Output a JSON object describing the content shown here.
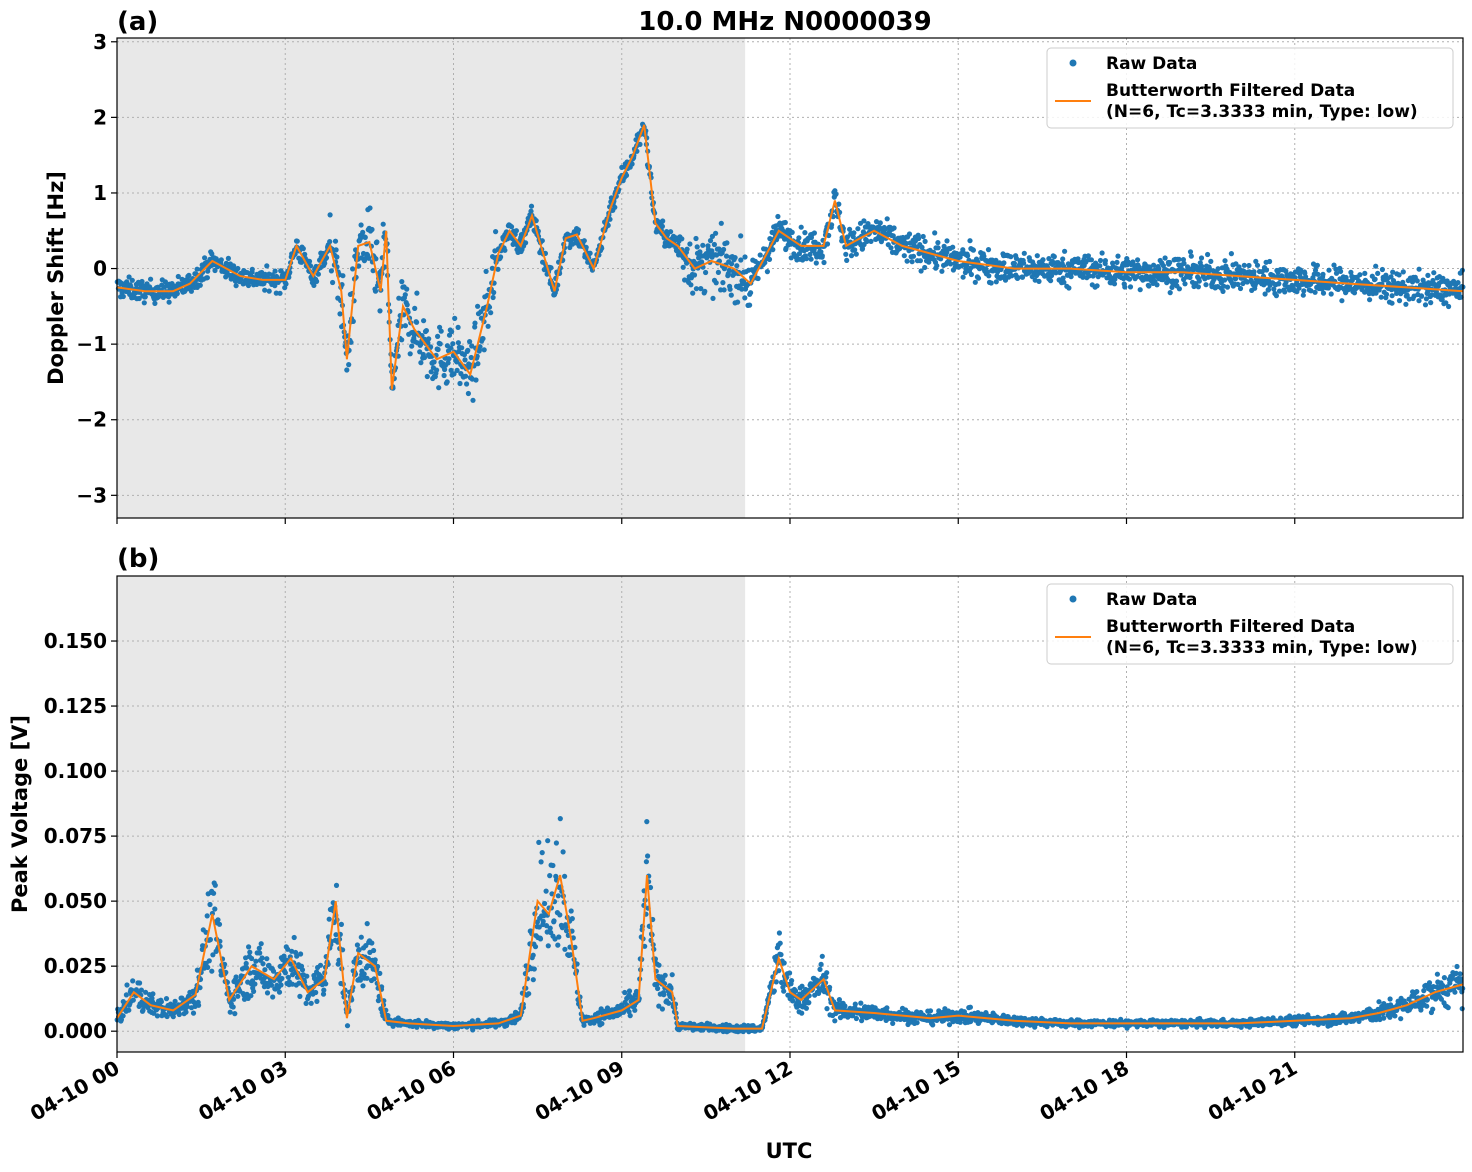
{
  "figure": {
    "title": "10.0 MHz N0000039",
    "xlabel": "UTC"
  },
  "colors": {
    "raw": "#1f77b4",
    "filtered": "#ff7f0e",
    "shade": "#e8e8e8",
    "grid": "#b0b0b0"
  },
  "legend": {
    "raw_label": "Raw Data",
    "filtered_label_line1": "Butterworth Filtered Data",
    "filtered_label_line2": "(N=6, Tc=3.3333 min, Type: low)"
  },
  "chart_data": [
    {
      "panel": "(a)",
      "type": "scatter",
      "ylabel": "Doppler Shift [Hz]",
      "xlim": [
        0,
        24
      ],
      "ylim": [
        -3.3,
        3.05
      ],
      "yticks": [
        -3,
        -2,
        -1,
        0,
        1,
        2,
        3
      ],
      "ytick_labels": [
        "−3",
        "−2",
        "−1",
        "0",
        "1",
        "2",
        "3"
      ],
      "xticks": [
        0,
        3,
        6,
        9,
        12,
        15,
        18,
        21
      ],
      "xtick_labels": [
        "04-10 00",
        "04-10 03",
        "04-10 06",
        "04-10 09",
        "04-10 12",
        "04-10 15",
        "04-10 18",
        "04-10 21"
      ],
      "grid": true,
      "legend_position": "top-right",
      "shaded_interval_hours": [
        0,
        11.2
      ],
      "filtered_series": {
        "x_hours": [
          0,
          0.5,
          1,
          1.3,
          1.7,
          2.2,
          2.6,
          3,
          3.2,
          3.5,
          3.8,
          4.0,
          4.1,
          4.3,
          4.5,
          4.7,
          4.8,
          4.9,
          5.1,
          5.3,
          5.5,
          5.7,
          6.0,
          6.3,
          6.6,
          6.8,
          7.0,
          7.2,
          7.4,
          7.6,
          7.8,
          8.0,
          8.2,
          8.5,
          8.8,
          9.0,
          9.2,
          9.4,
          9.6,
          9.8,
          10.0,
          10.3,
          10.6,
          11.0,
          11.3,
          11.8,
          12.2,
          12.6,
          12.8,
          13.0,
          13.5,
          14.0,
          15.0,
          16.0,
          17.0,
          18.0,
          19.0,
          20.0,
          21.0,
          22.0,
          23.0,
          24.0
        ],
        "doppler_hz": [
          -0.25,
          -0.3,
          -0.3,
          -0.2,
          0.1,
          -0.1,
          -0.15,
          -0.15,
          0.3,
          -0.1,
          0.3,
          -0.3,
          -1.2,
          0.3,
          0.35,
          -0.3,
          0.5,
          -1.6,
          -0.5,
          -0.8,
          -1.0,
          -1.2,
          -1.1,
          -1.4,
          -0.5,
          0.2,
          0.5,
          0.3,
          0.7,
          0.2,
          -0.3,
          0.4,
          0.45,
          0.0,
          0.8,
          1.2,
          1.5,
          1.9,
          0.6,
          0.4,
          0.3,
          0.0,
          0.1,
          0.0,
          -0.2,
          0.5,
          0.3,
          0.3,
          0.9,
          0.3,
          0.5,
          0.3,
          0.1,
          0.0,
          0.0,
          -0.05,
          -0.05,
          -0.1,
          -0.15,
          -0.2,
          -0.25,
          -0.3
        ]
      }
    },
    {
      "panel": "(b)",
      "type": "scatter",
      "ylabel": "Peak Voltage [V]",
      "xlim": [
        0,
        24
      ],
      "ylim": [
        -0.008,
        0.175
      ],
      "yticks": [
        0,
        0.025,
        0.05,
        0.075,
        0.1,
        0.125,
        0.15
      ],
      "ytick_labels": [
        "0.000",
        "0.025",
        "0.050",
        "0.075",
        "0.100",
        "0.125",
        "0.150"
      ],
      "xticks": [
        0,
        3,
        6,
        9,
        12,
        15,
        18,
        21
      ],
      "xtick_labels": [
        "04-10 00",
        "04-10 03",
        "04-10 06",
        "04-10 09",
        "04-10 12",
        "04-10 15",
        "04-10 18",
        "04-10 21"
      ],
      "grid": true,
      "legend_position": "top-right",
      "shaded_interval_hours": [
        0,
        11.2
      ],
      "filtered_series": {
        "x_hours": [
          0,
          0.3,
          0.6,
          1.0,
          1.4,
          1.7,
          2.0,
          2.4,
          2.8,
          3.1,
          3.4,
          3.7,
          3.9,
          4.1,
          4.3,
          4.6,
          4.8,
          5.2,
          6.0,
          6.8,
          7.2,
          7.5,
          7.7,
          7.9,
          8.1,
          8.3,
          8.5,
          9.0,
          9.3,
          9.45,
          9.6,
          9.9,
          10.0,
          11.0,
          11.5,
          11.8,
          12.0,
          12.2,
          12.6,
          12.8,
          13.5,
          14.5,
          15.0,
          16.0,
          17.0,
          18.0,
          19.0,
          20.0,
          21.0,
          22.0,
          22.5,
          23.0,
          23.5,
          24.0
        ],
        "voltage_v": [
          0.005,
          0.015,
          0.01,
          0.008,
          0.014,
          0.045,
          0.012,
          0.025,
          0.02,
          0.028,
          0.015,
          0.02,
          0.05,
          0.005,
          0.03,
          0.025,
          0.004,
          0.003,
          0.002,
          0.003,
          0.006,
          0.05,
          0.045,
          0.06,
          0.035,
          0.004,
          0.005,
          0.008,
          0.012,
          0.06,
          0.02,
          0.015,
          0.002,
          0.001,
          0.001,
          0.028,
          0.015,
          0.012,
          0.02,
          0.008,
          0.007,
          0.005,
          0.006,
          0.004,
          0.003,
          0.003,
          0.003,
          0.003,
          0.004,
          0.005,
          0.007,
          0.01,
          0.015,
          0.018
        ]
      }
    }
  ]
}
